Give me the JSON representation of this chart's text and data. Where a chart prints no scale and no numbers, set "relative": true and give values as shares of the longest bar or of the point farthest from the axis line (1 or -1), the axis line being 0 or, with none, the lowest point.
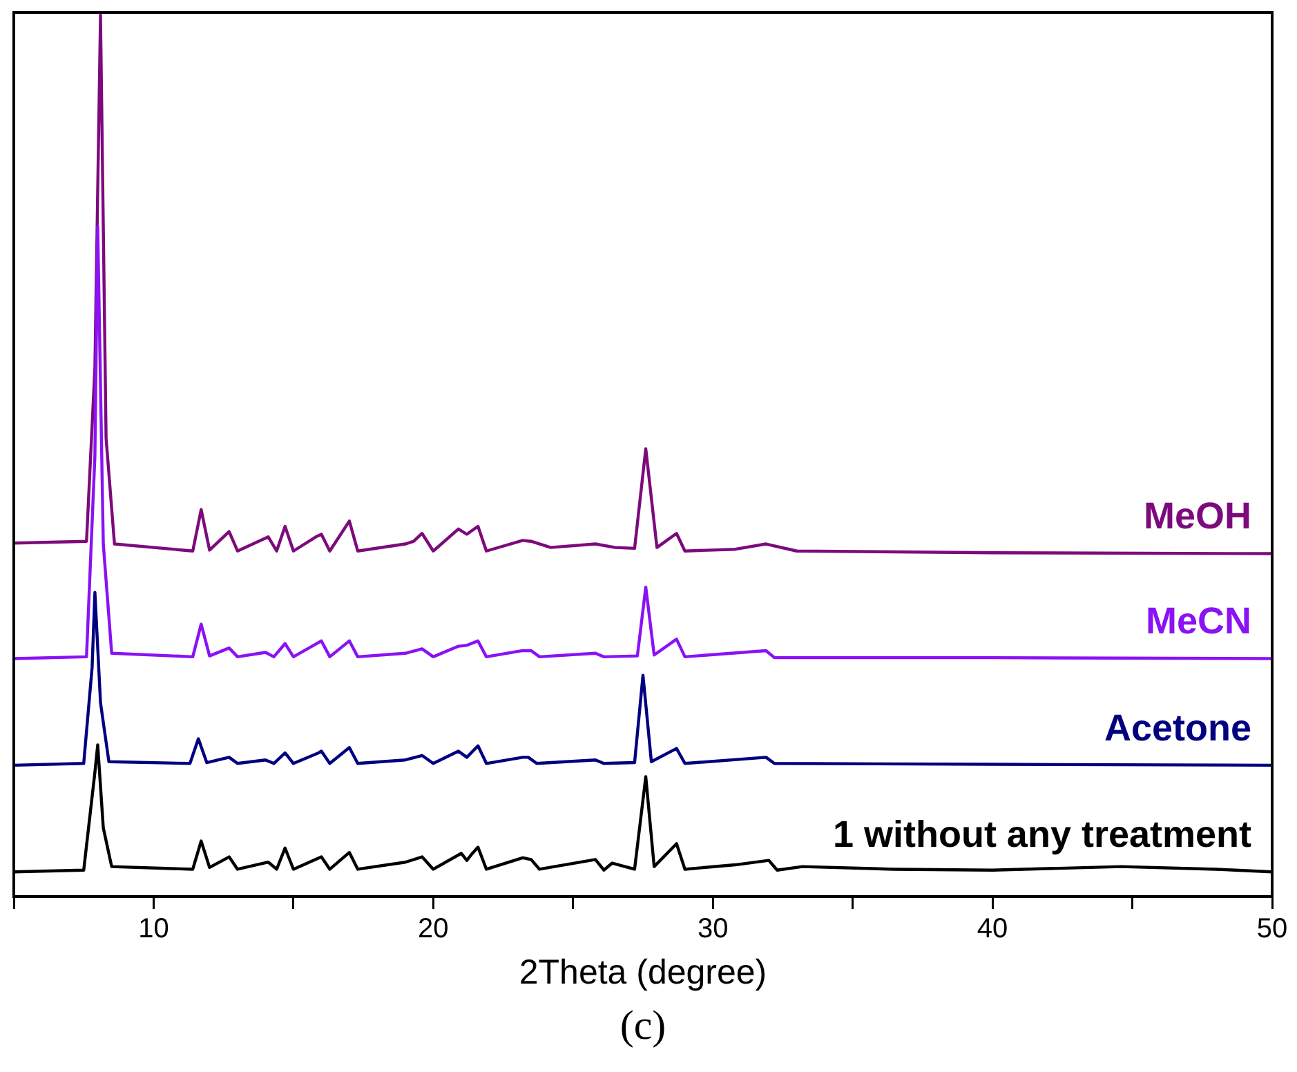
{
  "chart_data": {
    "type": "line",
    "relative": true,
    "xlabel": "2Theta (degree)",
    "annotations": [
      "(c)"
    ],
    "xlim": [
      5,
      50
    ],
    "xticks": [
      {
        "value": 5,
        "label": null
      },
      10,
      {
        "value": 15,
        "label": null
      },
      20,
      {
        "value": 25,
        "label": null
      },
      30,
      {
        "value": 35,
        "label": null
      },
      40,
      {
        "value": 45,
        "label": null
      },
      50
    ],
    "grid": false,
    "legend": false,
    "marker": "none",
    "line_style": "solid",
    "series": [
      {
        "name": "1 without any treatment",
        "color": "#000000",
        "x": [
          5,
          7.5,
          7.9,
          8.0,
          8.2,
          8.5,
          11.4,
          11.7,
          12.0,
          12.7,
          13.0,
          14.1,
          14.4,
          14.7,
          15.0,
          16.0,
          16.3,
          17.0,
          17.3,
          19.0,
          19.6,
          20.0,
          21.0,
          21.2,
          21.4,
          21.6,
          21.9,
          23.2,
          23.5,
          23.8,
          25.8,
          26.1,
          26.4,
          27.2,
          27.6,
          27.9,
          28.7,
          29.0,
          30.8,
          32.0,
          32.3,
          33.2,
          36.5,
          40,
          44.6,
          48,
          50
        ],
        "values": [
          0.028,
          0.03,
          0.141,
          0.172,
          0.078,
          0.034,
          0.031,
          0.063,
          0.033,
          0.045,
          0.031,
          0.039,
          0.031,
          0.055,
          0.031,
          0.045,
          0.031,
          0.05,
          0.031,
          0.039,
          0.045,
          0.031,
          0.049,
          0.041,
          0.049,
          0.056,
          0.031,
          0.044,
          0.042,
          0.031,
          0.042,
          0.03,
          0.038,
          0.031,
          0.136,
          0.034,
          0.06,
          0.031,
          0.036,
          0.041,
          0.03,
          0.034,
          0.031,
          0.03,
          0.034,
          0.031,
          0.028
        ]
      },
      {
        "name": "Acetone",
        "color": "#000080",
        "x": [
          5,
          7.5,
          7.8,
          7.9,
          8.1,
          8.4,
          11.3,
          11.6,
          11.9,
          12.7,
          13.0,
          14.0,
          14.3,
          14.7,
          15.0,
          15.9,
          16.0,
          16.3,
          17.0,
          17.3,
          19.0,
          19.6,
          20.0,
          20.9,
          21.2,
          21.6,
          21.9,
          23.2,
          23.4,
          23.7,
          25.8,
          26.1,
          27.2,
          27.5,
          27.8,
          28.7,
          29.0,
          31.9,
          32.2,
          40,
          50
        ],
        "values": [
          0.149,
          0.151,
          0.26,
          0.345,
          0.22,
          0.153,
          0.151,
          0.179,
          0.152,
          0.158,
          0.151,
          0.155,
          0.151,
          0.163,
          0.151,
          0.163,
          0.165,
          0.151,
          0.169,
          0.151,
          0.155,
          0.16,
          0.151,
          0.165,
          0.158,
          0.171,
          0.151,
          0.158,
          0.158,
          0.151,
          0.155,
          0.151,
          0.152,
          0.251,
          0.153,
          0.168,
          0.151,
          0.158,
          0.151,
          0.15,
          0.149
        ]
      },
      {
        "name": "MeCN",
        "color": "#8a12f5",
        "x": [
          5,
          7.6,
          7.9,
          8.0,
          8.2,
          8.5,
          11.4,
          11.7,
          12.0,
          12.7,
          13.0,
          14.0,
          14.3,
          14.7,
          15.0,
          16.0,
          16.3,
          17.0,
          17.3,
          19.0,
          19.6,
          20.0,
          20.9,
          21.2,
          21.6,
          21.9,
          23.2,
          23.5,
          23.8,
          25.8,
          26.1,
          27.3,
          27.6,
          27.9,
          28.7,
          29.0,
          31.9,
          32.2,
          40,
          50
        ],
        "values": [
          0.27,
          0.272,
          0.5,
          0.76,
          0.4,
          0.276,
          0.272,
          0.309,
          0.273,
          0.282,
          0.272,
          0.277,
          0.272,
          0.287,
          0.272,
          0.29,
          0.272,
          0.29,
          0.272,
          0.276,
          0.281,
          0.272,
          0.284,
          0.285,
          0.29,
          0.272,
          0.279,
          0.279,
          0.272,
          0.276,
          0.272,
          0.273,
          0.351,
          0.274,
          0.292,
          0.272,
          0.279,
          0.271,
          0.271,
          0.27
        ]
      },
      {
        "name": "MeOH",
        "color": "#7d0a7d",
        "x": [
          5,
          7.6,
          7.9,
          8.1,
          8.3,
          8.6,
          11.4,
          11.7,
          12.0,
          12.7,
          13.0,
          14.1,
          14.4,
          14.7,
          15.0,
          15.8,
          16.0,
          16.3,
          17.0,
          17.3,
          19.0,
          19.3,
          19.6,
          20.0,
          20.9,
          21.2,
          21.6,
          21.9,
          23.2,
          23.5,
          24.2,
          25.8,
          26.5,
          27.2,
          27.6,
          28.0,
          28.7,
          29.0,
          30.8,
          31.9,
          33.0,
          40,
          50
        ],
        "values": [
          0.401,
          0.403,
          0.6,
          1.0,
          0.52,
          0.4,
          0.392,
          0.439,
          0.393,
          0.414,
          0.392,
          0.408,
          0.392,
          0.42,
          0.392,
          0.408,
          0.411,
          0.392,
          0.426,
          0.392,
          0.4,
          0.403,
          0.412,
          0.392,
          0.417,
          0.411,
          0.42,
          0.392,
          0.404,
          0.403,
          0.396,
          0.4,
          0.396,
          0.395,
          0.508,
          0.396,
          0.412,
          0.392,
          0.394,
          0.4,
          0.392,
          0.39,
          0.389
        ]
      }
    ]
  }
}
